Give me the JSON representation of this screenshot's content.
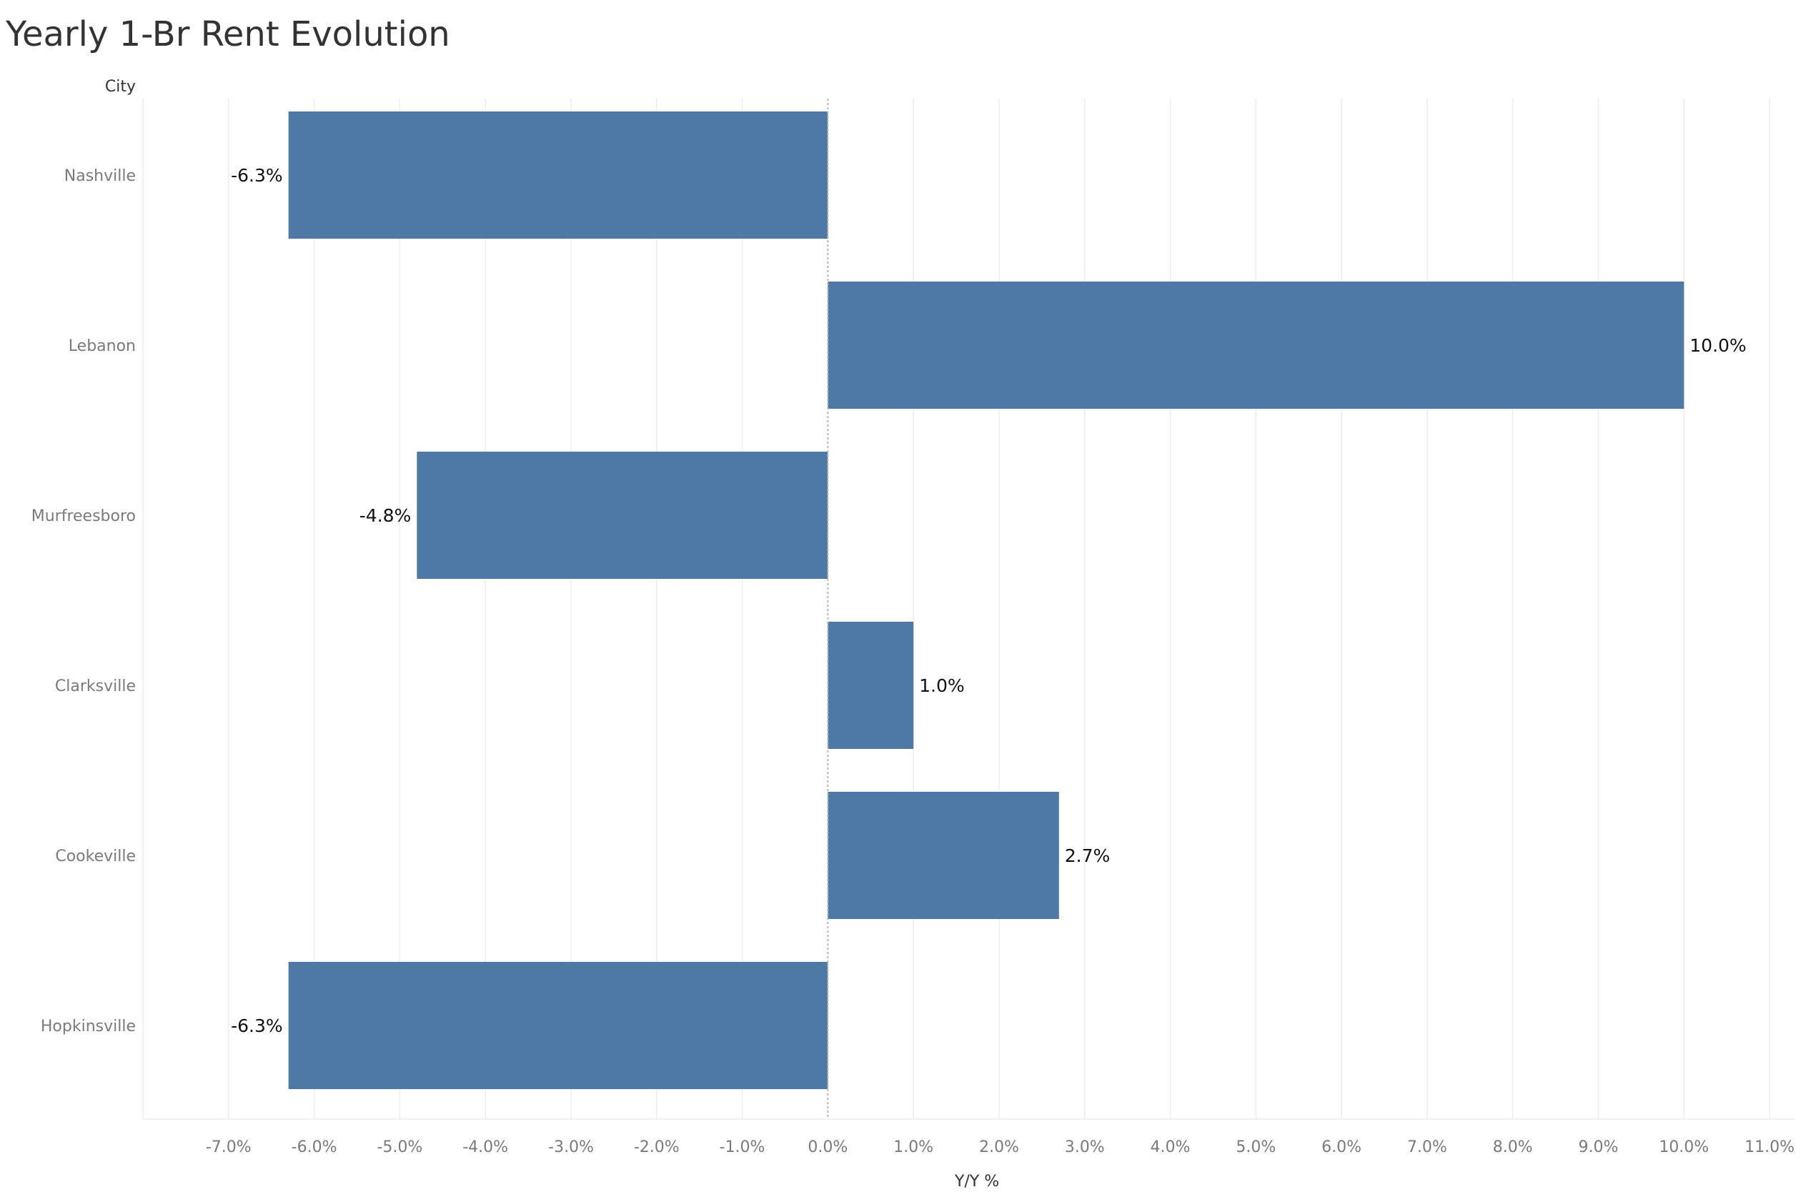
{
  "chart_data": {
    "type": "bar",
    "orientation": "horizontal",
    "title": "Yearly 1-Br Rent Evolution",
    "ylabel": "City",
    "xlabel": "Y/Y %",
    "categories": [
      "Nashville",
      "Lebanon",
      "Murfreesboro",
      "Clarksville",
      "Cookeville",
      "Hopkinsville"
    ],
    "values": [
      -6.3,
      10.0,
      -4.8,
      1.0,
      2.7,
      -6.3
    ],
    "value_labels": [
      "-6.3%",
      "10.0%",
      "-4.8%",
      "1.0%",
      "2.7%",
      "-6.3%"
    ],
    "xlim": [
      -8.0,
      11.3
    ],
    "ticks": [
      -7,
      -6,
      -5,
      -4,
      -3,
      -2,
      -1,
      0,
      1,
      2,
      3,
      4,
      5,
      6,
      7,
      8,
      9,
      10,
      11
    ],
    "tick_labels": [
      "-7.0%",
      "-6.0%",
      "-5.0%",
      "-4.0%",
      "-3.0%",
      "-2.0%",
      "-1.0%",
      "0.0%",
      "1.0%",
      "2.0%",
      "3.0%",
      "4.0%",
      "5.0%",
      "6.0%",
      "7.0%",
      "8.0%",
      "9.0%",
      "10.0%",
      "11.0%"
    ],
    "grid": true,
    "bar_color": "#4e79a7",
    "grid_color": "#eeeeee",
    "zero_line_color": "#b8b8b8"
  }
}
